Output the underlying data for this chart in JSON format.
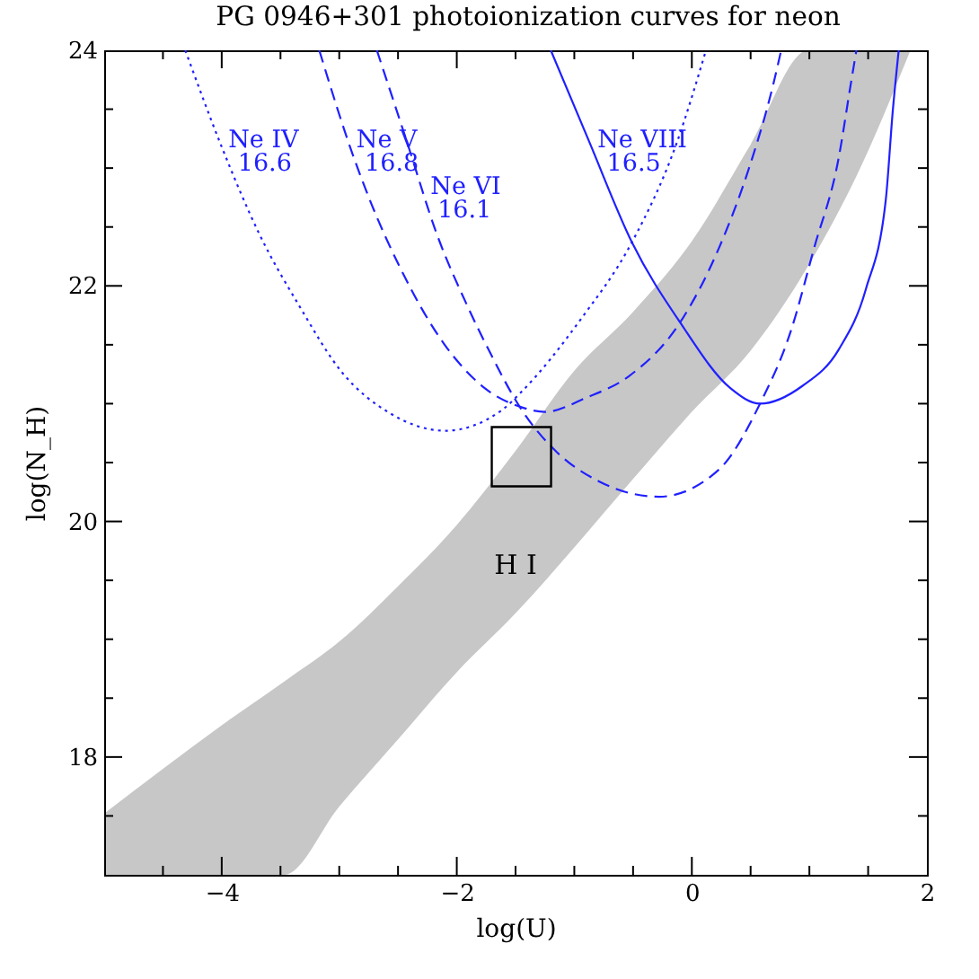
{
  "chart_data": {
    "type": "line",
    "title": "PG 0946+301 photoionization curves for neon",
    "xlabel": "log(U)",
    "ylabel": "log(N_H)",
    "xlim": [
      -5,
      2
    ],
    "ylim": [
      17,
      24
    ],
    "xticks": [
      {
        "value": -4.5,
        "label": null
      },
      -4,
      {
        "value": -3.5,
        "label": null
      },
      {
        "value": -3,
        "label": null
      },
      {
        "value": -2.5,
        "label": null
      },
      -2,
      {
        "value": -1.5,
        "label": null
      },
      {
        "value": -1,
        "label": null
      },
      {
        "value": -0.5,
        "label": null
      },
      0,
      {
        "value": 0.5,
        "label": null
      },
      {
        "value": 1,
        "label": null
      },
      {
        "value": 1.5,
        "label": null
      },
      2
    ],
    "yticks": [
      {
        "value": 17.5,
        "label": null
      },
      18,
      {
        "value": 18.5,
        "label": null
      },
      {
        "value": 19,
        "label": null
      },
      {
        "value": 19.5,
        "label": null
      },
      20,
      {
        "value": 20.5,
        "label": null
      },
      {
        "value": 21,
        "label": null
      },
      {
        "value": 21.5,
        "label": null
      },
      22,
      {
        "value": 22.5,
        "label": null
      },
      {
        "value": 23,
        "label": null
      },
      {
        "value": 23.5,
        "label": null
      },
      24
    ],
    "series": [
      {
        "name": "H I",
        "color": "#000000",
        "x": [
          -5,
          -4.5,
          -4,
          -3.47,
          -3,
          -2.5,
          -2,
          -1.5,
          -1,
          -0.5,
          0,
          0.5,
          0.99,
          1.4,
          1.86
        ],
        "values": [
          null,
          null,
          null,
          null,
          null,
          null,
          null,
          null,
          null,
          null,
          null,
          null,
          null,
          null,
          null
        ],
        "upper": [
          17.52,
          17.9,
          18.27,
          18.64,
          18.98,
          19.45,
          19.97,
          20.6,
          21.28,
          21.78,
          22.38,
          23.2,
          24,
          24,
          24
        ],
        "lower": [
          17,
          17,
          17,
          17,
          17.58,
          18.15,
          18.72,
          19.22,
          19.78,
          20.36,
          20.93,
          21.45,
          22.17,
          22.93,
          24
        ]
      },
      {
        "color": "#2020ff",
        "line_style": "dotted",
        "x": [
          -4.31,
          -4.0,
          -3.68,
          -3.34,
          -2.98,
          -2.57,
          -2.1,
          -1.61,
          -1.45,
          -0.95,
          -0.51,
          -0.13,
          0.12
        ],
        "values": [
          24,
          23.18,
          22.44,
          21.83,
          21.27,
          20.92,
          20.77,
          20.95,
          21.1,
          21.71,
          22.37,
          23.21,
          24
        ]
      },
      {
        "color": "#2020ff",
        "line_style": "dashed",
        "x": [
          -3.17,
          -2.88,
          -2.72,
          -2.48,
          -2.11,
          -1.76,
          -1.45,
          -1.25,
          -0.9,
          -0.54,
          -0.1,
          0.23,
          0.48,
          0.69,
          0.76
        ],
        "values": [
          24,
          23.1,
          22.68,
          22.15,
          21.51,
          21.13,
          20.97,
          20.93,
          21.05,
          21.23,
          21.69,
          22.32,
          22.98,
          23.7,
          24
        ]
      },
      {
        "color": "#2020ff",
        "line_style": "dashed",
        "x": [
          -2.68,
          -2.42,
          -2.17,
          -1.91,
          -1.71,
          -1.45,
          -1.15,
          -0.79,
          -0.28,
          0.23,
          0.58,
          0.84,
          1.04,
          1.25,
          1.35,
          1.4
        ],
        "values": [
          24,
          23.21,
          22.44,
          21.83,
          21.42,
          20.95,
          20.59,
          20.34,
          20.21,
          20.44,
          21.0,
          21.61,
          22.32,
          23.09,
          23.7,
          24
        ]
      },
      {
        "color": "#2020ff",
        "line_style": "solid",
        "x": [
          -1.2,
          -0.88,
          -0.51,
          -0.1,
          0.33,
          0.58,
          0.94,
          1.25,
          1.48,
          1.65,
          1.71,
          1.76
        ],
        "values": [
          24,
          23.24,
          22.37,
          21.69,
          21.13,
          21.0,
          21.15,
          21.46,
          21.97,
          22.73,
          23.49,
          24
        ]
      },
      {
        "type": "scatter",
        "color": "#000000",
        "marker": "square",
        "x": [
          -1.45
        ],
        "values": [
          20.55
        ]
      }
    ],
    "annotations": [
      {
        "text": "Ne IV",
        "x": -4.02,
        "y": 23.24
      },
      {
        "text": "16.6",
        "x": -3.94,
        "y": 23.04
      },
      {
        "text": "Ne V",
        "x": -2.93,
        "y": 23.24
      },
      {
        "text": "16.8",
        "x": -2.86,
        "y": 23.04
      },
      {
        "text": "Ne VI",
        "x": -2.3,
        "y": 22.84
      },
      {
        "text": "16.1",
        "x": -2.24,
        "y": 22.64
      },
      {
        "text": "Ne VIII",
        "x": -0.88,
        "y": 23.24
      },
      {
        "text": "16.5",
        "x": -0.8,
        "y": 23.04
      }
    ]
  }
}
